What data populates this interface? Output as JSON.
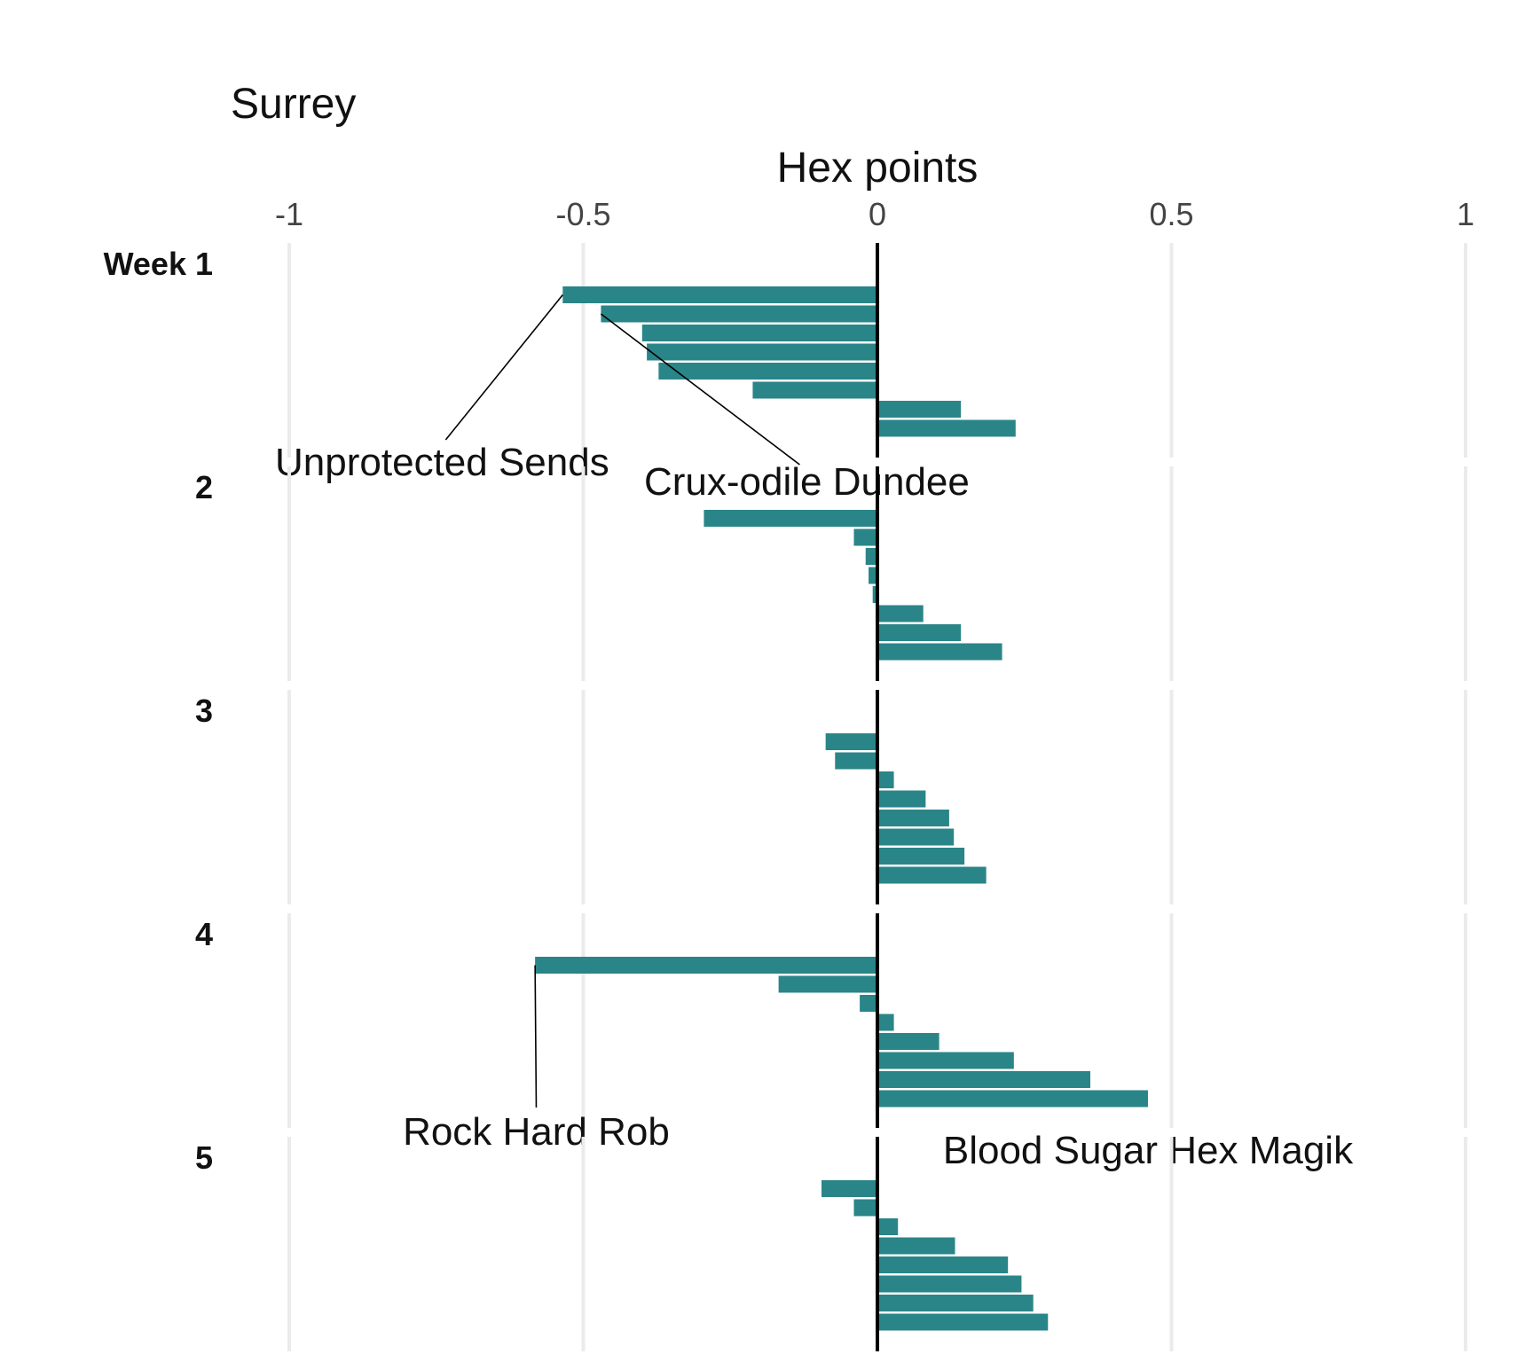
{
  "chart_data": {
    "type": "bar",
    "orientation": "horizontal",
    "title": "Surrey",
    "xlabel": "Hex points",
    "xlim": [
      -1,
      1
    ],
    "xticks": [
      -1,
      -0.5,
      0,
      0.5,
      1
    ],
    "xtick_labels": [
      "-1",
      "-0.5",
      "0",
      "0.5",
      "1"
    ],
    "grid": true,
    "bar_color": "#2a8588",
    "panels": [
      {
        "label": "Week 1",
        "values": [
          -0.535,
          -0.47,
          -0.4,
          -0.392,
          -0.372,
          -0.212,
          0.142,
          0.235
        ],
        "annotations": [
          {
            "text": "Unprotected Sends",
            "bar_index": 0,
            "label_x": -0.74
          },
          {
            "text": "Crux-odile Dundee",
            "bar_index": 1,
            "label_x": -0.12
          }
        ]
      },
      {
        "label": "2",
        "values": [
          -0.295,
          -0.04,
          -0.02,
          -0.015,
          -0.008,
          0.078,
          0.142,
          0.212
        ],
        "annotations": []
      },
      {
        "label": "3",
        "values": [
          -0.088,
          -0.072,
          0.028,
          0.082,
          0.122,
          0.13,
          0.148,
          0.185
        ],
        "annotations": []
      },
      {
        "label": "4",
        "values": [
          -0.582,
          -0.168,
          -0.03,
          0.028,
          0.105,
          0.232,
          0.362,
          0.46
        ],
        "annotations": [
          {
            "text": "Rock Hard Rob",
            "bar_index": 0,
            "label_x": -0.58
          },
          {
            "text": "Blood Sugar Hex Magik",
            "bar_index": 7,
            "label_x": 0.46
          }
        ]
      },
      {
        "label": "5",
        "values": [
          -0.095,
          -0.04,
          0.035,
          0.132,
          0.222,
          0.245,
          0.265,
          0.29
        ],
        "annotations": []
      }
    ]
  }
}
